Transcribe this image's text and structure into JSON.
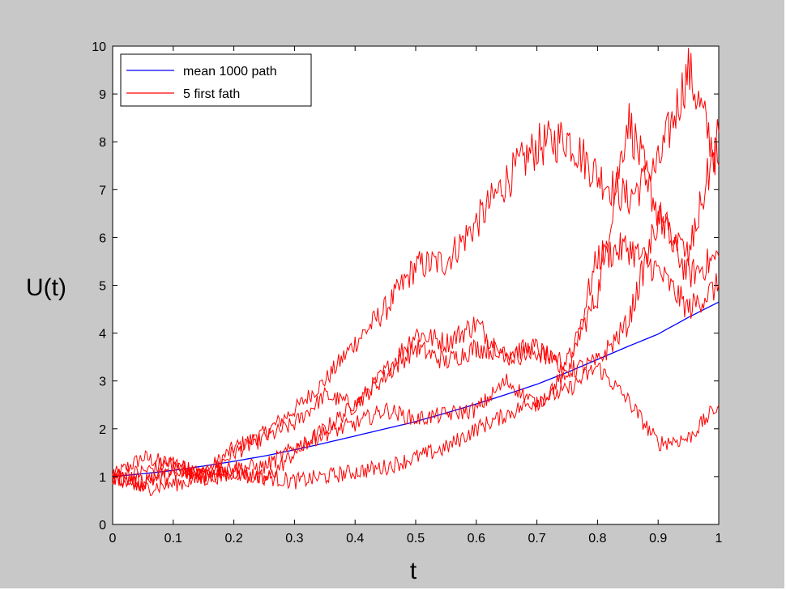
{
  "chart_data": {
    "type": "line",
    "title": "",
    "xlabel": "t",
    "ylabel": "U(t)",
    "xlim": [
      0,
      1
    ],
    "ylim": [
      0,
      10
    ],
    "xticks": [
      "0",
      "0.1",
      "0.2",
      "0.3",
      "0.4",
      "0.5",
      "0.6",
      "0.7",
      "0.8",
      "0.9",
      "1"
    ],
    "yticks": [
      "0",
      "1",
      "2",
      "3",
      "4",
      "5",
      "6",
      "7",
      "8",
      "9",
      "10"
    ],
    "grid": false,
    "legend_position": "top-left",
    "legend": [
      {
        "label": "mean 1000 path",
        "color": "#0000ff"
      },
      {
        "label": "5 first fath",
        "color": "#ff0000"
      }
    ],
    "colors": {
      "mean": "#0000ff",
      "paths": "#ff0000",
      "background": "#c8c8c8",
      "plot_area": "#ffffff"
    },
    "x": [
      0,
      0.05,
      0.1,
      0.15,
      0.2,
      0.25,
      0.3,
      0.35,
      0.4,
      0.45,
      0.5,
      0.55,
      0.6,
      0.65,
      0.7,
      0.75,
      0.8,
      0.85,
      0.9,
      0.95,
      1.0
    ],
    "series": [
      {
        "name": "mean 1000 path",
        "color": "#0000ff",
        "values": [
          1.0,
          1.06,
          1.13,
          1.22,
          1.32,
          1.43,
          1.56,
          1.7,
          1.85,
          2.0,
          2.15,
          2.33,
          2.52,
          2.72,
          2.93,
          3.18,
          3.45,
          3.72,
          3.98,
          4.33,
          4.65
        ]
      },
      {
        "color": "#ff0000",
        "values": [
          1.0,
          1.4,
          1.25,
          1.05,
          1.6,
          1.9,
          2.4,
          3.0,
          3.8,
          4.5,
          5.4,
          5.5,
          6.3,
          7.2,
          7.9,
          8.1,
          7.3,
          6.8,
          7.5,
          9.5,
          7.5
        ]
      },
      {
        "color": "#ff0000",
        "values": [
          1.0,
          0.85,
          1.2,
          1.0,
          1.5,
          1.8,
          2.1,
          2.7,
          2.5,
          3.2,
          4.0,
          3.8,
          4.2,
          3.5,
          3.6,
          3.4,
          4.8,
          8.5,
          6.5,
          5.2,
          5.6
        ]
      },
      {
        "color": "#ff0000",
        "values": [
          1.0,
          1.1,
          1.3,
          1.0,
          1.1,
          0.9,
          1.5,
          2.0,
          2.5,
          3.1,
          3.7,
          3.4,
          3.7,
          3.6,
          3.7,
          3.1,
          5.6,
          5.8,
          5.3,
          4.5,
          5.0
        ]
      },
      {
        "color": "#ff0000",
        "values": [
          1.0,
          0.75,
          0.85,
          0.95,
          1.1,
          1.0,
          0.9,
          1.0,
          1.1,
          1.2,
          1.4,
          1.6,
          2.0,
          2.3,
          2.6,
          2.8,
          3.3,
          2.6,
          1.7,
          1.8,
          2.5
        ]
      },
      {
        "color": "#ff0000",
        "values": [
          1.0,
          0.9,
          1.0,
          1.1,
          1.2,
          1.2,
          1.6,
          1.9,
          2.1,
          2.4,
          2.2,
          2.3,
          2.4,
          3.0,
          2.5,
          3.2,
          3.4,
          4.2,
          6.4,
          5.6,
          8.2
        ]
      }
    ]
  }
}
